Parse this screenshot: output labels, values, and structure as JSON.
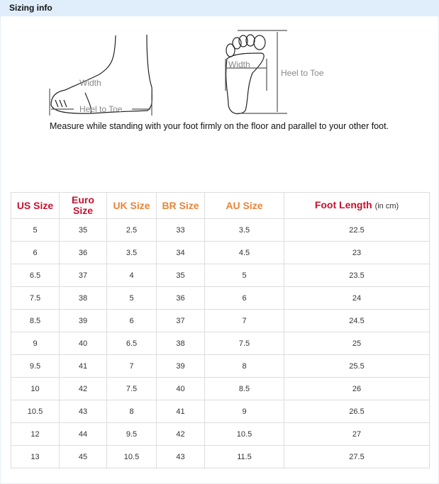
{
  "header": {
    "title": "Sizing info"
  },
  "diagram": {
    "side_width": "Width",
    "side_heel": "Heel to Toe",
    "sole_width": "Width",
    "sole_heel": "Heel to Toe"
  },
  "caption": "Measure while standing with your foot firmly on the floor and parallel to your other foot.",
  "colors": {
    "header_bg": "#dfeefa",
    "red": "#c8102e",
    "orange": "#e8843a"
  },
  "table": {
    "headers": [
      {
        "label": "US Size",
        "color": "red"
      },
      {
        "label": "Euro Size",
        "color": "red"
      },
      {
        "label": "UK Size",
        "color": "orange"
      },
      {
        "label": "BR Size",
        "color": "orange"
      },
      {
        "label": "AU Size",
        "color": "orange"
      },
      {
        "label": "Foot Length",
        "unit": "(in cm)",
        "color": "red"
      }
    ],
    "rows": [
      [
        "5",
        "35",
        "2.5",
        "33",
        "3.5",
        "22.5"
      ],
      [
        "6",
        "36",
        "3.5",
        "34",
        "4.5",
        "23"
      ],
      [
        "6.5",
        "37",
        "4",
        "35",
        "5",
        "23.5"
      ],
      [
        "7.5",
        "38",
        "5",
        "36",
        "6",
        "24"
      ],
      [
        "8.5",
        "39",
        "6",
        "37",
        "7",
        "24.5"
      ],
      [
        "9",
        "40",
        "6.5",
        "38",
        "7.5",
        "25"
      ],
      [
        "9.5",
        "41",
        "7",
        "39",
        "8",
        "25.5"
      ],
      [
        "10",
        "42",
        "7.5",
        "40",
        "8.5",
        "26"
      ],
      [
        "10.5",
        "43",
        "8",
        "41",
        "9",
        "26.5"
      ],
      [
        "12",
        "44",
        "9.5",
        "42",
        "10.5",
        "27"
      ],
      [
        "13",
        "45",
        "10.5",
        "43",
        "11.5",
        "27.5"
      ]
    ]
  }
}
